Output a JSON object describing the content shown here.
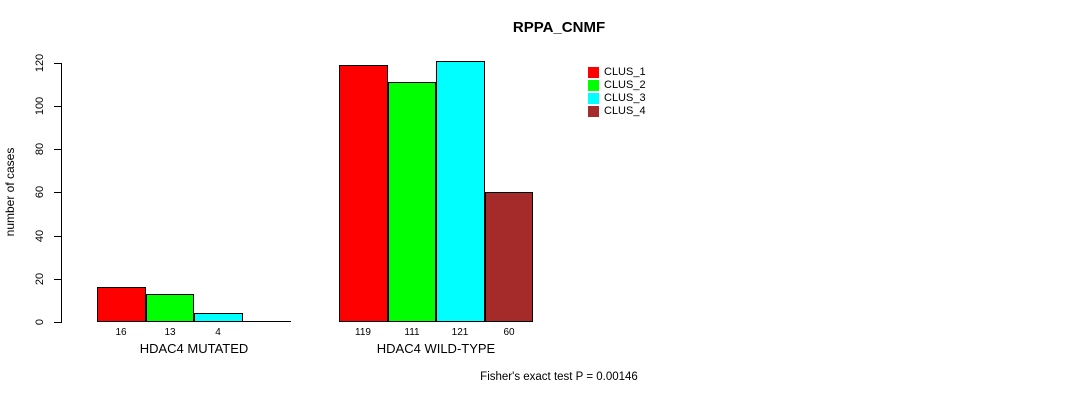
{
  "chart_data": {
    "type": "bar",
    "title": "RPPA_CNMF",
    "ylabel": "number of cases",
    "xlabel": "",
    "ylim": [
      0,
      120
    ],
    "yticks": [
      0,
      20,
      40,
      60,
      80,
      100,
      120
    ],
    "categories": [
      "HDAC4 MUTATED",
      "HDAC4 WILD-TYPE"
    ],
    "series": [
      {
        "name": "CLUS_1",
        "color": "#ff0000",
        "values": [
          16,
          119
        ]
      },
      {
        "name": "CLUS_2",
        "color": "#00ff00",
        "values": [
          13,
          111
        ]
      },
      {
        "name": "CLUS_3",
        "color": "#00ffff",
        "values": [
          4,
          121
        ]
      },
      {
        "name": "CLUS_4",
        "color": "#a52a2a",
        "values": [
          0,
          60
        ]
      }
    ],
    "bar_value_labels": [
      [
        "16",
        "13",
        "4",
        ""
      ],
      [
        "119",
        "111",
        "121",
        "60"
      ]
    ],
    "legend": {
      "position": "top-right",
      "entries": [
        "CLUS_1",
        "CLUS_2",
        "CLUS_3",
        "CLUS_4"
      ]
    },
    "annotation": "Fisher's exact test P = 0.00146",
    "grid": false,
    "background": "#ffffff"
  }
}
